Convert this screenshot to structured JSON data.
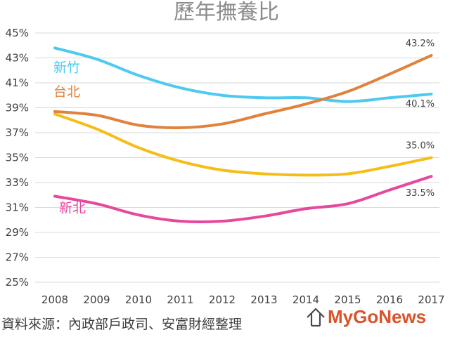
{
  "chart_data": {
    "type": "line",
    "title": "歷年撫養比",
    "xlabel": "",
    "ylabel": "",
    "categories": [
      "2008",
      "2009",
      "2010",
      "2011",
      "2012",
      "2013",
      "2014",
      "2015",
      "2016",
      "2017"
    ],
    "ylim": [
      25,
      45
    ],
    "yticks": [
      25,
      27,
      29,
      31,
      33,
      35,
      37,
      39,
      41,
      43,
      45
    ],
    "ytick_labels": [
      "25%",
      "27%",
      "29%",
      "31%",
      "33%",
      "35%",
      "37%",
      "39%",
      "41%",
      "43%",
      "45%"
    ],
    "grid": true,
    "series": [
      {
        "name": "新竹",
        "color": "#4ec9ef",
        "values": [
          43.8,
          42.9,
          41.6,
          40.6,
          40.0,
          39.8,
          39.8,
          39.5,
          39.8,
          40.1
        ],
        "end_label": "40.1%"
      },
      {
        "name": "台北",
        "color": "#e0823c",
        "values": [
          38.7,
          38.4,
          37.6,
          37.4,
          37.7,
          38.5,
          39.3,
          40.3,
          41.7,
          43.2
        ],
        "end_label": "43.2%"
      },
      {
        "name": "",
        "color": "#f5be16",
        "values": [
          38.5,
          37.3,
          35.8,
          34.7,
          34.0,
          33.7,
          33.6,
          33.7,
          34.3,
          35.0
        ],
        "end_label": "35.0%"
      },
      {
        "name": "新北",
        "color": "#e5489c",
        "values": [
          31.9,
          31.3,
          30.4,
          29.9,
          29.9,
          30.3,
          30.9,
          31.3,
          32.4,
          33.5
        ],
        "end_label": "33.5%"
      }
    ]
  },
  "footer": {
    "source": "資料來源：內政部戶政司、安富財經整理"
  },
  "logo": {
    "text": "MyGoNews",
    "color": "#d9532b"
  }
}
